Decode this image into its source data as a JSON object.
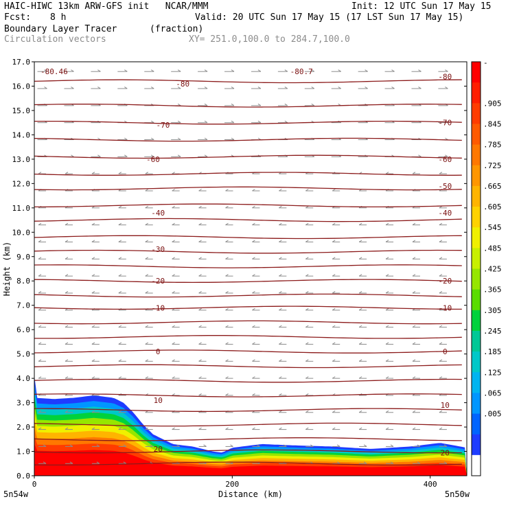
{
  "header": {
    "title_left": "HAIC-HIWC 13km ARW-GFS init   NCAR/MMM",
    "init": "Init: 12 UTC Sun 17 May 15",
    "fcst_label": "Fcst:",
    "fcst_value": "8 h",
    "valid": "Valid: 20 UTC Sun 17 May 15 (17 LST Sun 17 May 15)",
    "field1_name": "Boundary Layer Tracer",
    "field1_units": "(fraction)",
    "field2_name": "Circulation vectors",
    "xy_range": "XY= 251.0,100.0 to 284.7,100.0"
  },
  "colors": {
    "contour": "#8b1a1a",
    "vector": "#8c8c8c"
  },
  "chart_data": {
    "type": "heatmap",
    "title": "Boundary Layer Tracer",
    "units": "(fraction)",
    "xlabel": "Distance (km)",
    "ylabel": "Height (km)",
    "xlim": [
      0,
      437
    ],
    "ylim": [
      0,
      17
    ],
    "x_ticks": [
      0,
      200,
      400
    ],
    "y_ticks": [
      "0.0",
      "1.0",
      "2.0",
      "3.0",
      "4.0",
      "5.0",
      "6.0",
      "7.0",
      "8.0",
      "9.0",
      "10.0",
      "11.0",
      "12.0",
      "13.0",
      "14.0",
      "15.0",
      "16.0",
      "17.0"
    ],
    "x_endpoints": {
      "left": "5n54w",
      "right": "5n50w"
    },
    "colorbar": {
      "labels": [
        "-",
        ".905",
        ".845",
        ".785",
        ".725",
        ".665",
        ".605",
        ".545",
        ".485",
        ".425",
        ".365",
        ".305",
        ".245",
        ".185",
        ".125",
        ".065",
        ".005"
      ],
      "colors": [
        "#ff0000",
        "#ff1e00",
        "#ff3c00",
        "#ff5a00",
        "#ff7800",
        "#ff9600",
        "#ffb400",
        "#ffd200",
        "#f0f000",
        "#c8f000",
        "#96e600",
        "#5adc00",
        "#00d23c",
        "#00c896",
        "#00c8c8",
        "#00b4f0",
        "#0096ff",
        "#0064ff",
        "#1e3cff",
        "#ffffff"
      ]
    },
    "tracer_top_km": [
      {
        "x": 0,
        "h": 4.1
      },
      {
        "x": 1,
        "h": 3.2
      },
      {
        "x": 20,
        "h": 3.15
      },
      {
        "x": 40,
        "h": 3.2
      },
      {
        "x": 60,
        "h": 3.3
      },
      {
        "x": 80,
        "h": 3.2
      },
      {
        "x": 90,
        "h": 3.0
      },
      {
        "x": 100,
        "h": 2.6
      },
      {
        "x": 110,
        "h": 2.1
      },
      {
        "x": 120,
        "h": 1.7
      },
      {
        "x": 140,
        "h": 1.3
      },
      {
        "x": 160,
        "h": 1.2
      },
      {
        "x": 180,
        "h": 1.0
      },
      {
        "x": 190,
        "h": 0.95
      },
      {
        "x": 200,
        "h": 1.15
      },
      {
        "x": 230,
        "h": 1.3
      },
      {
        "x": 260,
        "h": 1.25
      },
      {
        "x": 300,
        "h": 1.2
      },
      {
        "x": 340,
        "h": 1.1
      },
      {
        "x": 380,
        "h": 1.2
      },
      {
        "x": 410,
        "h": 1.35
      },
      {
        "x": 437,
        "h": 1.15
      }
    ],
    "temperature_contours": [
      {
        "label": "-80.46",
        "x": 20,
        "y": 16.6
      },
      {
        "label": "-80.7",
        "x": 270,
        "y": 16.6
      },
      {
        "label": "-80",
        "x": 150,
        "y": 16.1
      },
      {
        "label": "-80",
        "x": 415,
        "y": 16.4
      },
      {
        "label": "-70",
        "x": 130,
        "y": 14.4
      },
      {
        "label": "-70",
        "x": 415,
        "y": 14.5
      },
      {
        "label": "-60",
        "x": 120,
        "y": 13.0
      },
      {
        "label": "-60",
        "x": 415,
        "y": 13.0
      },
      {
        "label": "-50",
        "x": 415,
        "y": 11.9
      },
      {
        "label": "-40",
        "x": 125,
        "y": 10.8
      },
      {
        "label": "-40",
        "x": 415,
        "y": 10.8
      },
      {
        "label": "-30",
        "x": 125,
        "y": 9.3
      },
      {
        "label": "-20",
        "x": 125,
        "y": 8.0
      },
      {
        "label": "-20",
        "x": 415,
        "y": 8.0
      },
      {
        "label": "-10",
        "x": 125,
        "y": 6.9
      },
      {
        "label": "-10",
        "x": 415,
        "y": 6.9
      },
      {
        "label": "0",
        "x": 125,
        "y": 5.1
      },
      {
        "label": "0",
        "x": 415,
        "y": 5.1
      },
      {
        "label": "10",
        "x": 125,
        "y": 3.1
      },
      {
        "label": "10",
        "x": 415,
        "y": 2.9
      },
      {
        "label": "20",
        "x": 125,
        "y": 1.1
      },
      {
        "label": "20",
        "x": 415,
        "y": 0.95
      }
    ],
    "contour_levels_km": [
      16.2,
      15.2,
      14.5,
      13.8,
      13.1,
      12.4,
      11.8,
      11.1,
      10.5,
      9.8,
      9.2,
      8.6,
      8.0,
      7.4,
      6.9,
      6.3,
      5.7,
      5.1,
      4.5,
      3.9,
      3.3,
      2.7,
      2.1,
      1.5,
      1.0,
      0.5
    ],
    "grid": false,
    "legend": "right colorbar"
  }
}
